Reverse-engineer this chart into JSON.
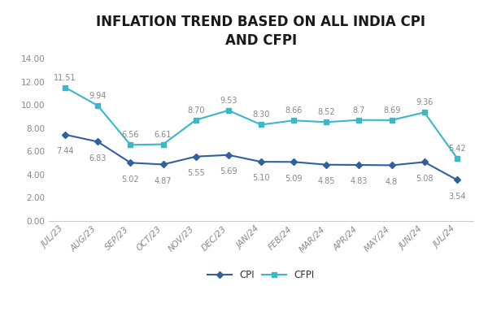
{
  "title": "INFLATION TREND BASED ON ALL INDIA CPI\nAND CFPI",
  "categories": [
    "JUL/23",
    "AUG/23",
    "SEP/23",
    "OCT/23",
    "NOV/23",
    "DEC/23",
    "JAN/24",
    "FEB/24",
    "MAR/24",
    "APR/24",
    "MAY/24",
    "JUN/24",
    "JUL/24"
  ],
  "cpi": [
    7.44,
    6.83,
    5.02,
    4.87,
    5.55,
    5.69,
    5.1,
    5.09,
    4.85,
    4.83,
    4.8,
    5.08,
    3.54
  ],
  "cfpi": [
    11.51,
    9.94,
    6.56,
    6.61,
    8.7,
    9.53,
    8.3,
    8.66,
    8.52,
    8.7,
    8.69,
    9.36,
    5.42
  ],
  "cpi_labels": [
    "7.44",
    "6.83",
    "5.02",
    "4.87",
    "5.55",
    "5.69",
    "5.10",
    "5.09",
    "4.85",
    "4.83",
    "4.8",
    "5.08",
    "3.54"
  ],
  "cfpi_labels": [
    "11.51",
    "9.94",
    "6.56",
    "6.61",
    "8.70",
    "9.53",
    "8.30",
    "8.66",
    "8.52",
    "8.7",
    "8.69",
    "9.36",
    "5.42"
  ],
  "cpi_color": "#3060A0",
  "cfpi_color": "#38B8C8",
  "ylim": [
    0,
    14
  ],
  "yticks": [
    0.0,
    2.0,
    4.0,
    6.0,
    8.0,
    10.0,
    12.0,
    14.0
  ],
  "legend_labels": [
    "CPI",
    "CFPI"
  ],
  "background_color": "#FFFFFF",
  "outer_bg": "#F0F0F0",
  "title_fontsize": 12,
  "label_fontsize": 7.5,
  "annotation_fontsize": 7,
  "tick_color": "#888888",
  "annotation_color": "#888888",
  "spine_color": "#CCCCCC"
}
